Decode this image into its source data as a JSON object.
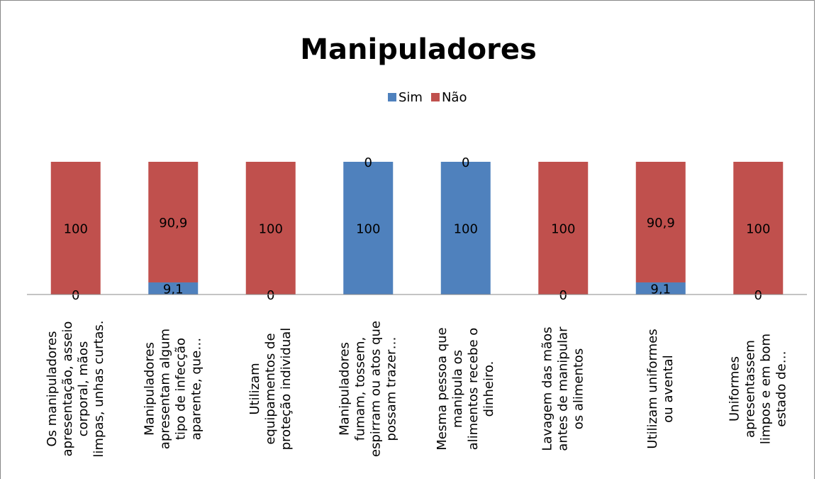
{
  "chart_data": {
    "type": "stacked_bar",
    "title": "Manipuladores",
    "categories": [
      "Os manipuladores\napresentação, asseio\ncorporal, mãos\nlimpas, unhas curtas.",
      "Manipuladores\napresentam algum\ntipo de infecção\naparente, que…",
      "Utilizam\nequipamentos de\nproteção individual",
      "Manipuladores\nfumam, tossem,\nespirram ou atos que\npossam trazer…",
      "Mesma pessoa que\nmanipula os\nalimentos recebe o\ndinheiro.",
      "Lavagem das mãos\nantes de manipular\nos alimentos",
      "Utilizam uniformes\nou avental",
      "Uniformes\napresentassem\nlimpos e em bom\nestado de…"
    ],
    "series": [
      {
        "name": "Sim",
        "color": "#4f81bd",
        "values": [
          0,
          9.1,
          0,
          100,
          100,
          0,
          9.1,
          0
        ],
        "value_labels": [
          "0",
          "9,1",
          "0",
          "100",
          "100",
          "0",
          "9,1",
          "0"
        ]
      },
      {
        "name": "Não",
        "color": "#c0504d",
        "values": [
          100,
          90.9,
          100,
          0,
          0,
          100,
          90.9,
          100
        ],
        "value_labels": [
          "100",
          "90,9",
          "100",
          "0",
          "0",
          "100",
          "90,9",
          "100"
        ]
      }
    ],
    "ylim": [
      0,
      100
    ],
    "legend": "top"
  }
}
